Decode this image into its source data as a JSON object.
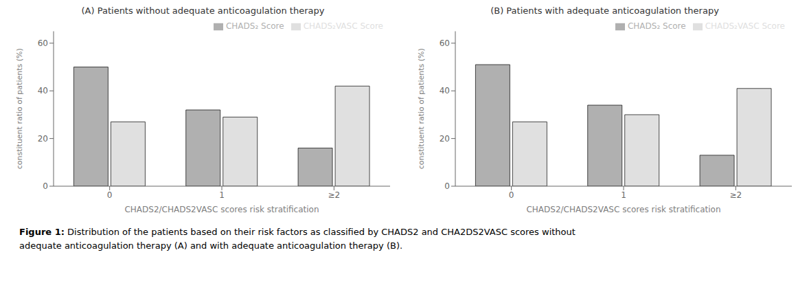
{
  "chart_data": [
    {
      "type": "bar",
      "title": "(A) Patients without adequate anticoagulation therapy",
      "categories": [
        "0",
        "1",
        "≥2"
      ],
      "series": [
        {
          "name": "CHADS₂ Score",
          "color": "#b0b0b0",
          "values": [
            50,
            32,
            16
          ]
        },
        {
          "name": "CHADS₂VASC Score",
          "color": "#e0e0e0",
          "values": [
            27,
            29,
            42
          ]
        }
      ],
      "xlabel": "CHADS2/CHADS2VASC scores risk stratification",
      "ylabel": "constituent ratio of patients (%)",
      "ylim": [
        0,
        65
      ],
      "yticks": [
        0,
        20,
        40,
        60
      ],
      "grid": false,
      "legend": "upper right"
    },
    {
      "type": "bar",
      "title": "(B) Patients with adequate anticoagulation therapy",
      "categories": [
        "0",
        "1",
        "≥2"
      ],
      "series": [
        {
          "name": "CHADS₂ Score",
          "color": "#b0b0b0",
          "values": [
            51,
            34,
            13
          ]
        },
        {
          "name": "CHADS₂VASC Score",
          "color": "#e0e0e0",
          "values": [
            27,
            30,
            41
          ]
        }
      ],
      "xlabel": "CHADS2/CHADS2VASC scores risk stratification",
      "ylabel": "constituent ratio of patients (%)",
      "ylim": [
        0,
        65
      ],
      "yticks": [
        0,
        20,
        40,
        60
      ],
      "grid": false,
      "legend": "upper right"
    }
  ],
  "caption": [
    "Figure 1:",
    "Distribution of the patients based on their risk factors as classified by CHADS2 and CHA2DS2VASC scores without",
    "adequate anticoagulation therapy (A) and with adequate anticoagulation therapy (B)."
  ]
}
